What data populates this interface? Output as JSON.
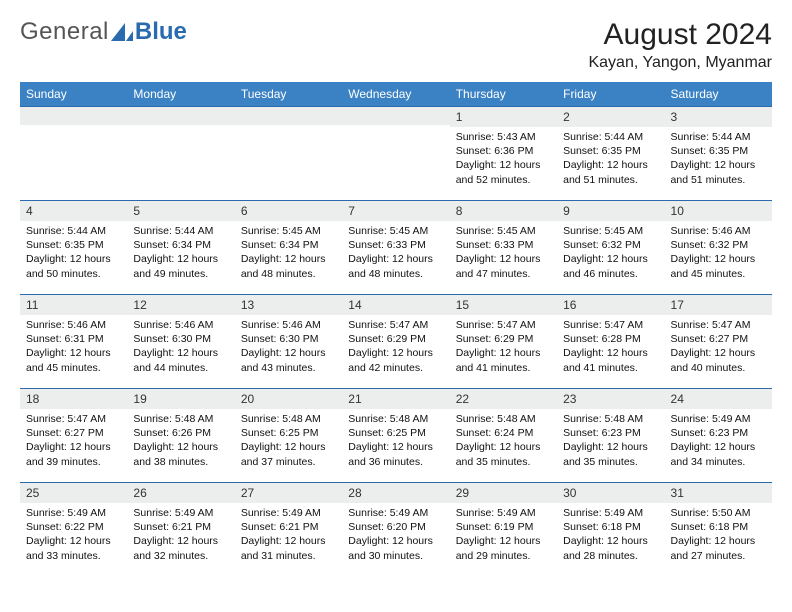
{
  "brand": {
    "general": "General",
    "blue": "Blue"
  },
  "title": {
    "month": "August 2024",
    "location": "Kayan, Yangon, Myanmar"
  },
  "colors": {
    "header_bg": "#3b82c4",
    "rule": "#2a6bb0",
    "daybar": "#eceeee"
  },
  "weekdays": [
    "Sunday",
    "Monday",
    "Tuesday",
    "Wednesday",
    "Thursday",
    "Friday",
    "Saturday"
  ],
  "calendar": {
    "type": "table",
    "lead_blanks": 4,
    "days": [
      {
        "n": "1",
        "sr": "5:43 AM",
        "ss": "6:36 PM",
        "dl": "12 hours and 52 minutes."
      },
      {
        "n": "2",
        "sr": "5:44 AM",
        "ss": "6:35 PM",
        "dl": "12 hours and 51 minutes."
      },
      {
        "n": "3",
        "sr": "5:44 AM",
        "ss": "6:35 PM",
        "dl": "12 hours and 51 minutes."
      },
      {
        "n": "4",
        "sr": "5:44 AM",
        "ss": "6:35 PM",
        "dl": "12 hours and 50 minutes."
      },
      {
        "n": "5",
        "sr": "5:44 AM",
        "ss": "6:34 PM",
        "dl": "12 hours and 49 minutes."
      },
      {
        "n": "6",
        "sr": "5:45 AM",
        "ss": "6:34 PM",
        "dl": "12 hours and 48 minutes."
      },
      {
        "n": "7",
        "sr": "5:45 AM",
        "ss": "6:33 PM",
        "dl": "12 hours and 48 minutes."
      },
      {
        "n": "8",
        "sr": "5:45 AM",
        "ss": "6:33 PM",
        "dl": "12 hours and 47 minutes."
      },
      {
        "n": "9",
        "sr": "5:45 AM",
        "ss": "6:32 PM",
        "dl": "12 hours and 46 minutes."
      },
      {
        "n": "10",
        "sr": "5:46 AM",
        "ss": "6:32 PM",
        "dl": "12 hours and 45 minutes."
      },
      {
        "n": "11",
        "sr": "5:46 AM",
        "ss": "6:31 PM",
        "dl": "12 hours and 45 minutes."
      },
      {
        "n": "12",
        "sr": "5:46 AM",
        "ss": "6:30 PM",
        "dl": "12 hours and 44 minutes."
      },
      {
        "n": "13",
        "sr": "5:46 AM",
        "ss": "6:30 PM",
        "dl": "12 hours and 43 minutes."
      },
      {
        "n": "14",
        "sr": "5:47 AM",
        "ss": "6:29 PM",
        "dl": "12 hours and 42 minutes."
      },
      {
        "n": "15",
        "sr": "5:47 AM",
        "ss": "6:29 PM",
        "dl": "12 hours and 41 minutes."
      },
      {
        "n": "16",
        "sr": "5:47 AM",
        "ss": "6:28 PM",
        "dl": "12 hours and 41 minutes."
      },
      {
        "n": "17",
        "sr": "5:47 AM",
        "ss": "6:27 PM",
        "dl": "12 hours and 40 minutes."
      },
      {
        "n": "18",
        "sr": "5:47 AM",
        "ss": "6:27 PM",
        "dl": "12 hours and 39 minutes."
      },
      {
        "n": "19",
        "sr": "5:48 AM",
        "ss": "6:26 PM",
        "dl": "12 hours and 38 minutes."
      },
      {
        "n": "20",
        "sr": "5:48 AM",
        "ss": "6:25 PM",
        "dl": "12 hours and 37 minutes."
      },
      {
        "n": "21",
        "sr": "5:48 AM",
        "ss": "6:25 PM",
        "dl": "12 hours and 36 minutes."
      },
      {
        "n": "22",
        "sr": "5:48 AM",
        "ss": "6:24 PM",
        "dl": "12 hours and 35 minutes."
      },
      {
        "n": "23",
        "sr": "5:48 AM",
        "ss": "6:23 PM",
        "dl": "12 hours and 35 minutes."
      },
      {
        "n": "24",
        "sr": "5:49 AM",
        "ss": "6:23 PM",
        "dl": "12 hours and 34 minutes."
      },
      {
        "n": "25",
        "sr": "5:49 AM",
        "ss": "6:22 PM",
        "dl": "12 hours and 33 minutes."
      },
      {
        "n": "26",
        "sr": "5:49 AM",
        "ss": "6:21 PM",
        "dl": "12 hours and 32 minutes."
      },
      {
        "n": "27",
        "sr": "5:49 AM",
        "ss": "6:21 PM",
        "dl": "12 hours and 31 minutes."
      },
      {
        "n": "28",
        "sr": "5:49 AM",
        "ss": "6:20 PM",
        "dl": "12 hours and 30 minutes."
      },
      {
        "n": "29",
        "sr": "5:49 AM",
        "ss": "6:19 PM",
        "dl": "12 hours and 29 minutes."
      },
      {
        "n": "30",
        "sr": "5:49 AM",
        "ss": "6:18 PM",
        "dl": "12 hours and 28 minutes."
      },
      {
        "n": "31",
        "sr": "5:50 AM",
        "ss": "6:18 PM",
        "dl": "12 hours and 27 minutes."
      }
    ],
    "labels": {
      "sunrise": "Sunrise: ",
      "sunset": "Sunset: ",
      "daylight": "Daylight: "
    }
  }
}
